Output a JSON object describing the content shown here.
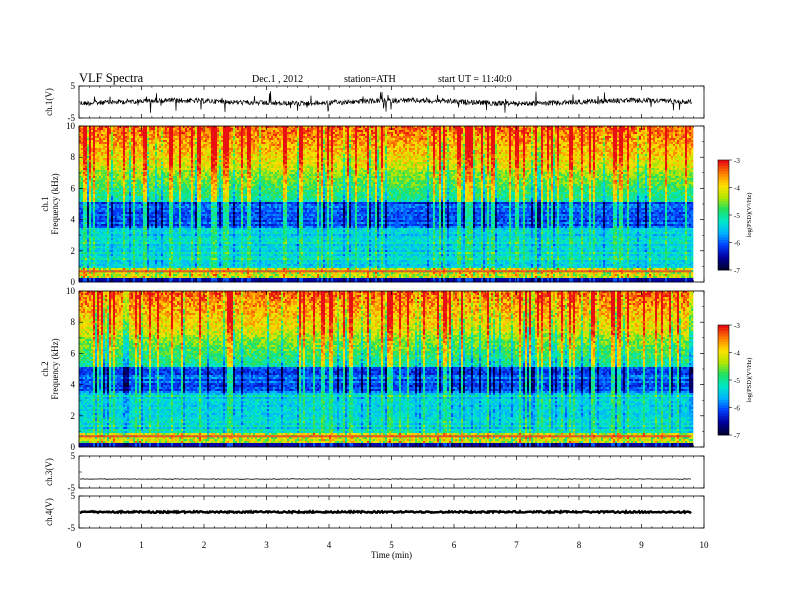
{
  "header": {
    "title": "VLF  Spectra",
    "date": "Dec.1  , 2012",
    "station": "station=ATH",
    "start": "start  UT  =    11:40:0"
  },
  "chart_data": [
    {
      "type": "line",
      "panel": "ch1-waveform",
      "ylabel": "ch.1(V)",
      "ylim": [
        -5,
        5
      ],
      "yticks": [
        "5",
        "-5"
      ],
      "baseline": 0,
      "trace_color": "#000000"
    },
    {
      "type": "heatmap",
      "panel": "ch1-spectrogram",
      "ylabel": "ch.1\nFrequency  (kHz)",
      "ylim": [
        0,
        10
      ],
      "yticks": [
        "0",
        "2",
        "4",
        "6",
        "8",
        "10"
      ],
      "colorbar": {
        "label": "log(PSD)(V²/Hz)",
        "range": [
          -7,
          -3
        ],
        "ticks": [
          "-3",
          "-4",
          "-5",
          "-6",
          "-7"
        ]
      }
    },
    {
      "type": "heatmap",
      "panel": "ch2-spectrogram",
      "ylabel": "ch.2\nFrequency  (kHz)",
      "ylim": [
        0,
        10
      ],
      "yticks": [
        "0",
        "2",
        "4",
        "6",
        "8",
        "10"
      ],
      "colorbar": {
        "label": "log(PSD)(V²/Hz)",
        "range": [
          -7,
          -3
        ],
        "ticks": [
          "-3",
          "-4",
          "-5",
          "-6",
          "-7"
        ]
      }
    },
    {
      "type": "line",
      "panel": "ch3-waveform",
      "ylabel": "ch.3(V)",
      "ylim": [
        -5,
        5
      ],
      "yticks": [
        "5",
        "-5"
      ],
      "baseline": -2.2
    },
    {
      "type": "line",
      "panel": "ch4-waveform",
      "ylabel": "ch.4(V)",
      "ylim": [
        -5,
        5
      ],
      "yticks": [
        "5",
        "-5"
      ],
      "baseline": 0
    }
  ],
  "x_axis": {
    "xlabel": "Time  (min)",
    "xlim": [
      0,
      10
    ],
    "xticks": [
      "0",
      "1",
      "2",
      "3",
      "4",
      "5",
      "6",
      "7",
      "8",
      "9",
      "10"
    ],
    "data_end": 9.8
  },
  "colormap": [
    "#000033",
    "#0000a0",
    "#0040ff",
    "#00b4ff",
    "#00e8c8",
    "#20e060",
    "#b4e600",
    "#ffe000",
    "#ff8000",
    "#e81010",
    "#ffffff"
  ]
}
